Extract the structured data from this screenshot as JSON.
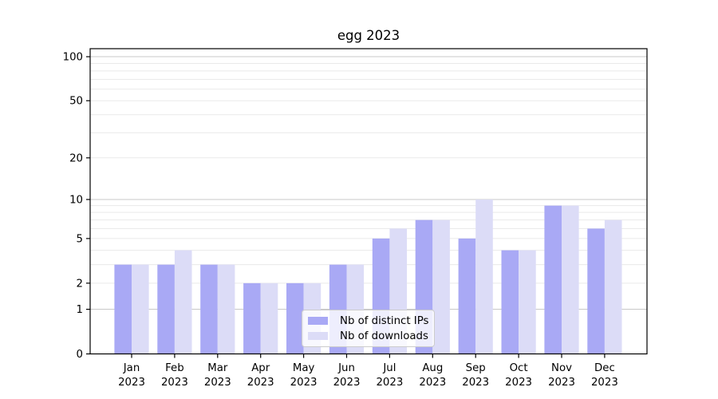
{
  "chart_data": {
    "type": "bar",
    "title": "egg 2023",
    "background": "#ffffff",
    "axis_color": "#000000",
    "text_color": "#000000",
    "categories": [
      "Jan 2023",
      "Feb 2023",
      "Mar 2023",
      "Apr 2023",
      "May 2023",
      "Jun 2023",
      "Jul 2023",
      "Aug 2023",
      "Sep 2023",
      "Oct 2023",
      "Nov 2023",
      "Dec 2023"
    ],
    "series": [
      {
        "name": "Nb of distinct IPs",
        "color": "#a9a9f5",
        "values": [
          3,
          3,
          3,
          2,
          2,
          3,
          5,
          7,
          5,
          4,
          9,
          6
        ]
      },
      {
        "name": "Nb of downloads",
        "color": "#dcdcf7",
        "values": [
          3,
          4,
          3,
          2,
          2,
          3,
          6,
          7,
          10,
          4,
          9,
          7
        ]
      }
    ],
    "yaxis": {
      "scale": "log1p",
      "ylim": [
        0,
        113.4
      ],
      "tick_values": [
        0,
        1,
        2,
        5,
        10,
        20,
        50,
        100
      ],
      "major_grid_values": [
        1,
        10,
        100
      ],
      "minor_grid_values": [
        2,
        3,
        4,
        5,
        6,
        7,
        8,
        9,
        20,
        30,
        40,
        50,
        60,
        70,
        80,
        90
      ],
      "grid_color_major": "#c9c9c9",
      "grid_color_minor": "#eaeaea"
    },
    "legend": {
      "location": "lower center"
    }
  }
}
